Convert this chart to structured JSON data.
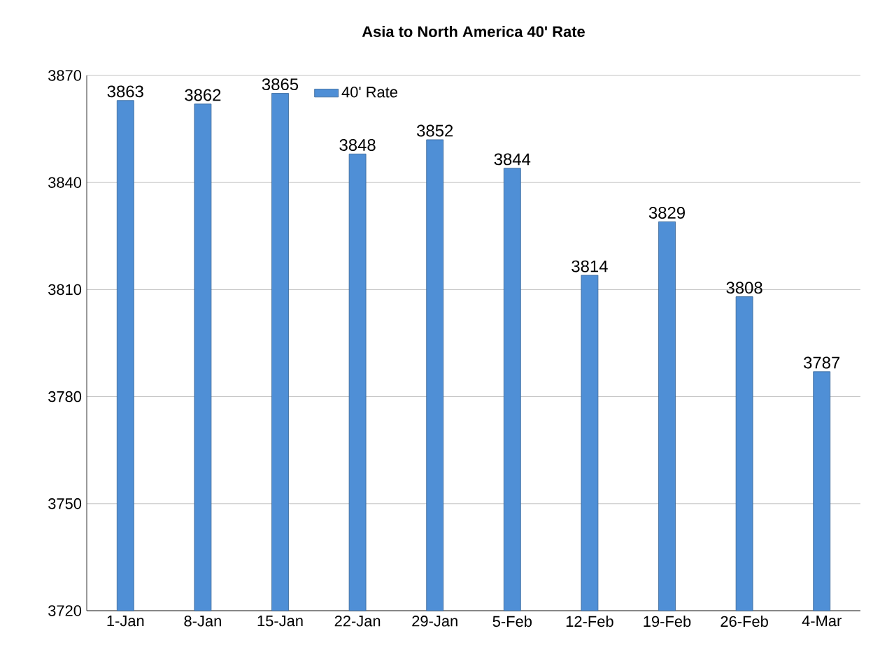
{
  "chart_data": {
    "type": "bar",
    "title": "Asia to North America 40' Rate",
    "categories": [
      "1-Jan",
      "8-Jan",
      "15-Jan",
      "22-Jan",
      "29-Jan",
      "5-Feb",
      "12-Feb",
      "19-Feb",
      "26-Feb",
      "4-Mar"
    ],
    "series": [
      {
        "name": "40' Rate",
        "color": "#4f8fd6",
        "values": [
          3863,
          3862,
          3865,
          3848,
          3852,
          3844,
          3814,
          3829,
          3808,
          3787
        ]
      }
    ],
    "ylim": [
      3720,
      3870
    ],
    "yticks": [
      3720,
      3750,
      3780,
      3810,
      3840,
      3870
    ],
    "grid": "y",
    "legend": "top",
    "data_labels": true
  }
}
